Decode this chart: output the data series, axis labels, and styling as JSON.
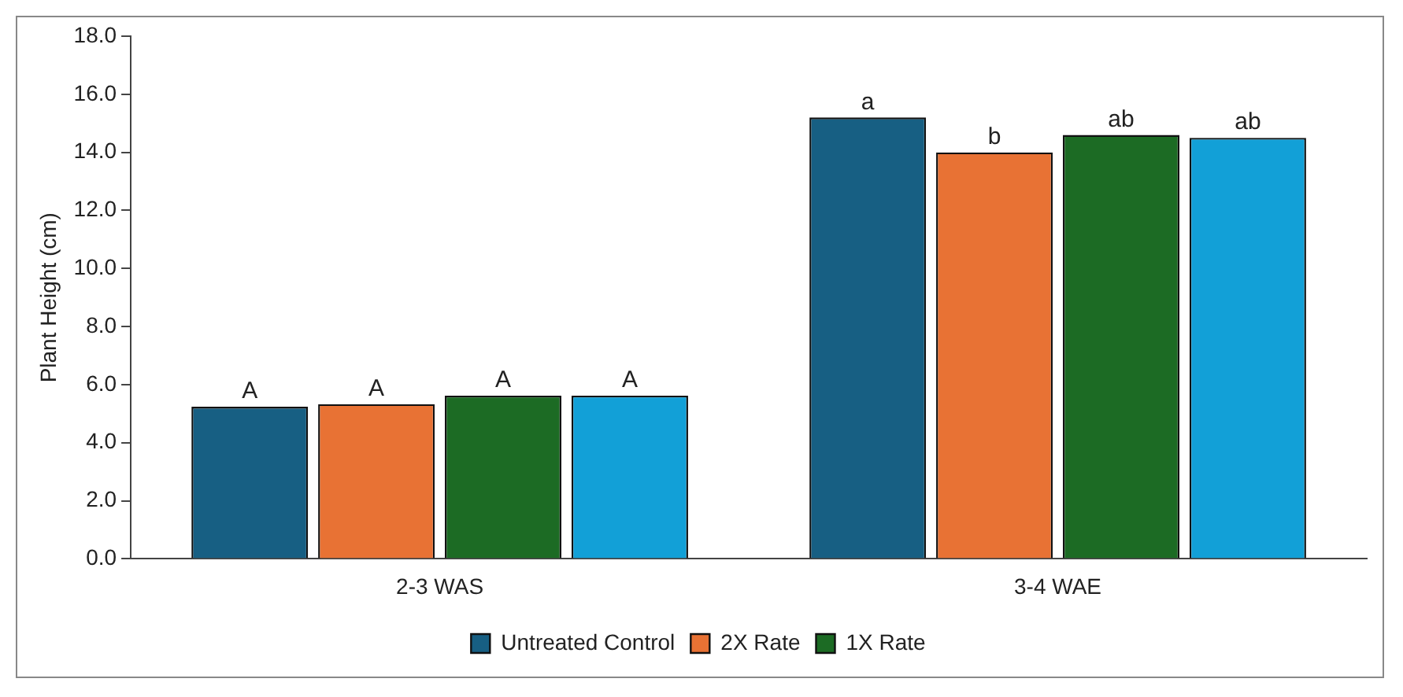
{
  "chart_data": {
    "type": "bar",
    "ylabel": "Plant Height (cm)",
    "categories": [
      "2-3 WAS",
      "3-4 WAE"
    ],
    "series": [
      {
        "name": "Untreated Control",
        "color": "#175f83",
        "values": [
          5.24,
          15.2
        ],
        "value_labels": [
          "A",
          "a"
        ]
      },
      {
        "name": "2X Rate",
        "color": "#e87234",
        "values": [
          5.33,
          14.0
        ],
        "value_labels": [
          "A",
          "b"
        ]
      },
      {
        "name": "1X Rate",
        "color": "#1c6b24",
        "values": [
          5.62,
          14.6
        ],
        "value_labels": [
          "A",
          "ab"
        ]
      },
      {
        "color": "#12a0d7",
        "values": [
          5.62,
          14.5
        ],
        "value_labels": [
          "A",
          "ab"
        ]
      }
    ],
    "ylim": [
      0,
      18
    ],
    "yticks": [
      {
        "value": 0,
        "label": "0.0"
      },
      {
        "value": 2,
        "label": "2.0"
      },
      {
        "value": 4,
        "label": "4.0"
      },
      {
        "value": 6,
        "label": "6.0"
      },
      {
        "value": 8,
        "label": "8.0"
      },
      {
        "value": 10,
        "label": "10.0"
      },
      {
        "value": 12,
        "label": "12.0"
      },
      {
        "value": 14,
        "label": "14.0"
      },
      {
        "value": 16,
        "label": "16.0"
      },
      {
        "value": 18,
        "label": "18.0"
      }
    ],
    "grid": false,
    "legend": "bottom"
  }
}
